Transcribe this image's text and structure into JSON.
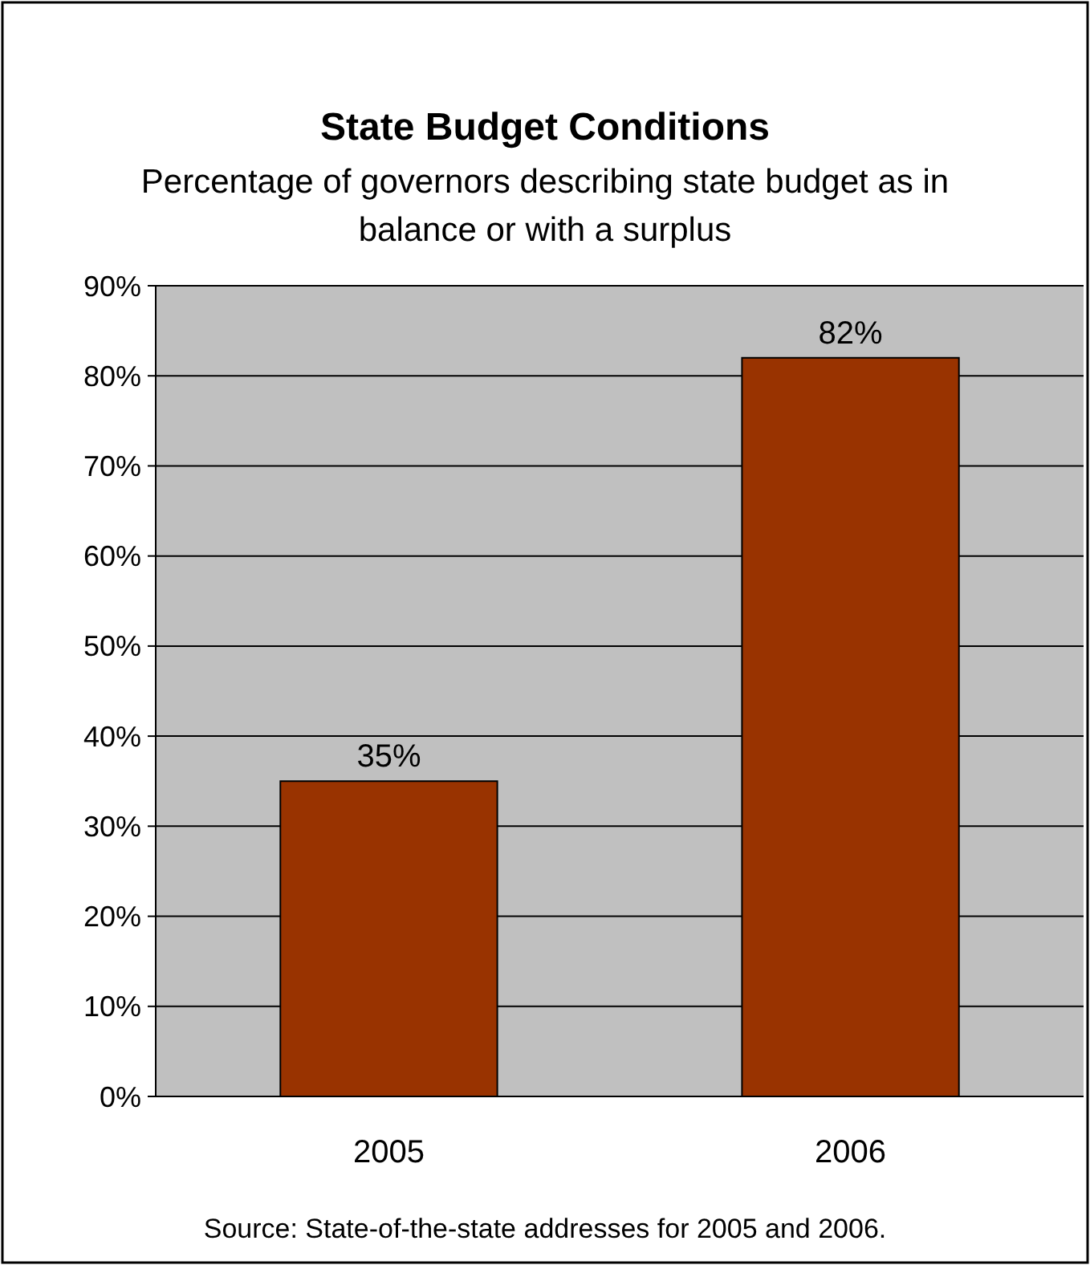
{
  "chart_data": {
    "type": "bar",
    "title": "State Budget Conditions",
    "subtitle": "Percentage of governors describing state budget as in balance or with a surplus",
    "categories": [
      "2005",
      "2006"
    ],
    "values": [
      35,
      82
    ],
    "color": "#993300",
    "value_labels": [
      "35%",
      "82%"
    ],
    "ylim": [
      0,
      90
    ],
    "yticks": [
      {
        "value": 0,
        "label": "0%"
      },
      {
        "value": 10,
        "label": "10%"
      },
      {
        "value": 20,
        "label": "20%"
      },
      {
        "value": 30,
        "label": "30%"
      },
      {
        "value": 40,
        "label": "40%"
      },
      {
        "value": 50,
        "label": "50%"
      },
      {
        "value": 60,
        "label": "60%"
      },
      {
        "value": 70,
        "label": "70%"
      },
      {
        "value": 80,
        "label": "80%"
      },
      {
        "value": 90,
        "label": "90%"
      }
    ],
    "grid": "y",
    "annotations": [
      "Source: State-of-the-state addresses for 2005 and 2006."
    ]
  }
}
